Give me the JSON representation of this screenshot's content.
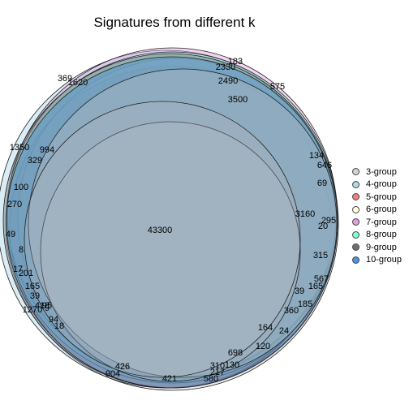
{
  "title": "Signatures from different k",
  "groups": [
    {
      "label": "3-group",
      "color": "#d3d3d3"
    },
    {
      "label": "4-group",
      "color": "#add8e6"
    },
    {
      "label": "5-group",
      "color": "#f08080"
    },
    {
      "label": "6-group",
      "color": "#ffffe0"
    },
    {
      "label": "7-group",
      "color": "#dda0dd"
    },
    {
      "label": "8-group",
      "color": "#7fffd4"
    },
    {
      "label": "9-group",
      "color": "#707070"
    },
    {
      "label": "10-group",
      "color": "#4d94db"
    }
  ],
  "region_counts": [
    "43300",
    "3500",
    "2490",
    "2330",
    "1620",
    "369",
    "183",
    "575",
    "1350",
    "994",
    "329",
    "100",
    "270",
    "49",
    "8",
    "17",
    "201",
    "165",
    "39",
    "95",
    "1270",
    "418",
    "9",
    "94",
    "18",
    "134",
    "646",
    "69",
    "3160",
    "295",
    "20",
    "315",
    "567",
    "165",
    "39",
    "185",
    "360",
    "24",
    "164",
    "120",
    "698",
    "310",
    "130",
    "217",
    "580",
    "421",
    "426",
    "904"
  ]
}
